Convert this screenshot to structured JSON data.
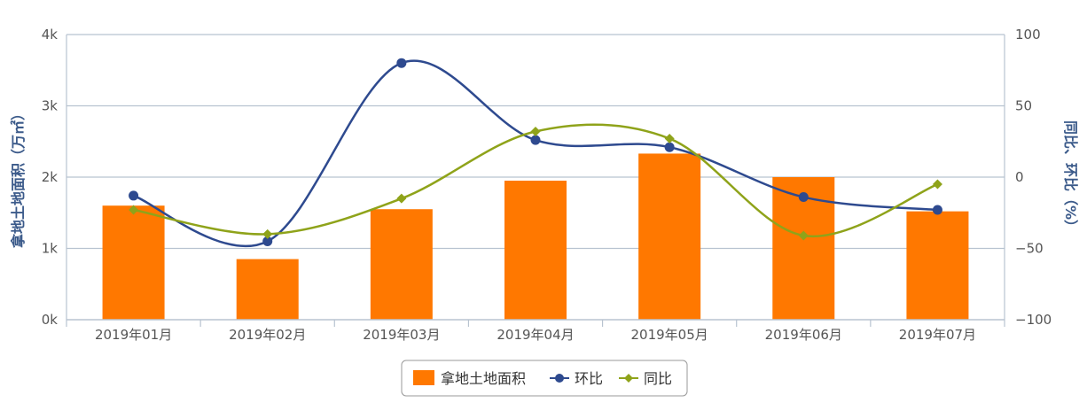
{
  "chart_data": {
    "type": "bar",
    "categories": [
      "2019年01月",
      "2019年02月",
      "2019年03月",
      "2019年04月",
      "2019年05月",
      "2019年06月",
      "2019年07月"
    ],
    "series": [
      {
        "name": "拿地土地面积",
        "type": "bar",
        "axis": "left",
        "color": "#ff7800",
        "values": [
          1.6,
          0.85,
          1.55,
          1.95,
          2.33,
          2.0,
          1.52
        ]
      },
      {
        "name": "环比",
        "type": "line",
        "axis": "right",
        "color": "#2e4a8f",
        "marker": "circle",
        "values": [
          -13,
          -45,
          80,
          26,
          21,
          -14,
          -23
        ]
      },
      {
        "name": "同比",
        "type": "line",
        "axis": "right",
        "color": "#8fa31a",
        "marker": "diamond",
        "values": [
          -23,
          -40,
          -15,
          32,
          27,
          -41,
          -5
        ]
      }
    ],
    "ylabel": "拿地土地面积（万㎡）",
    "y2label": "同比、环比（%）",
    "ylim": [
      0,
      4
    ],
    "y2lim": [
      -100,
      100
    ],
    "yticks": [
      "0k",
      "1k",
      "2k",
      "3k",
      "4k"
    ],
    "y2ticks": [
      "−100",
      "−50",
      "0",
      "50",
      "100"
    ],
    "grid": true,
    "legend_position": "bottom-center"
  }
}
